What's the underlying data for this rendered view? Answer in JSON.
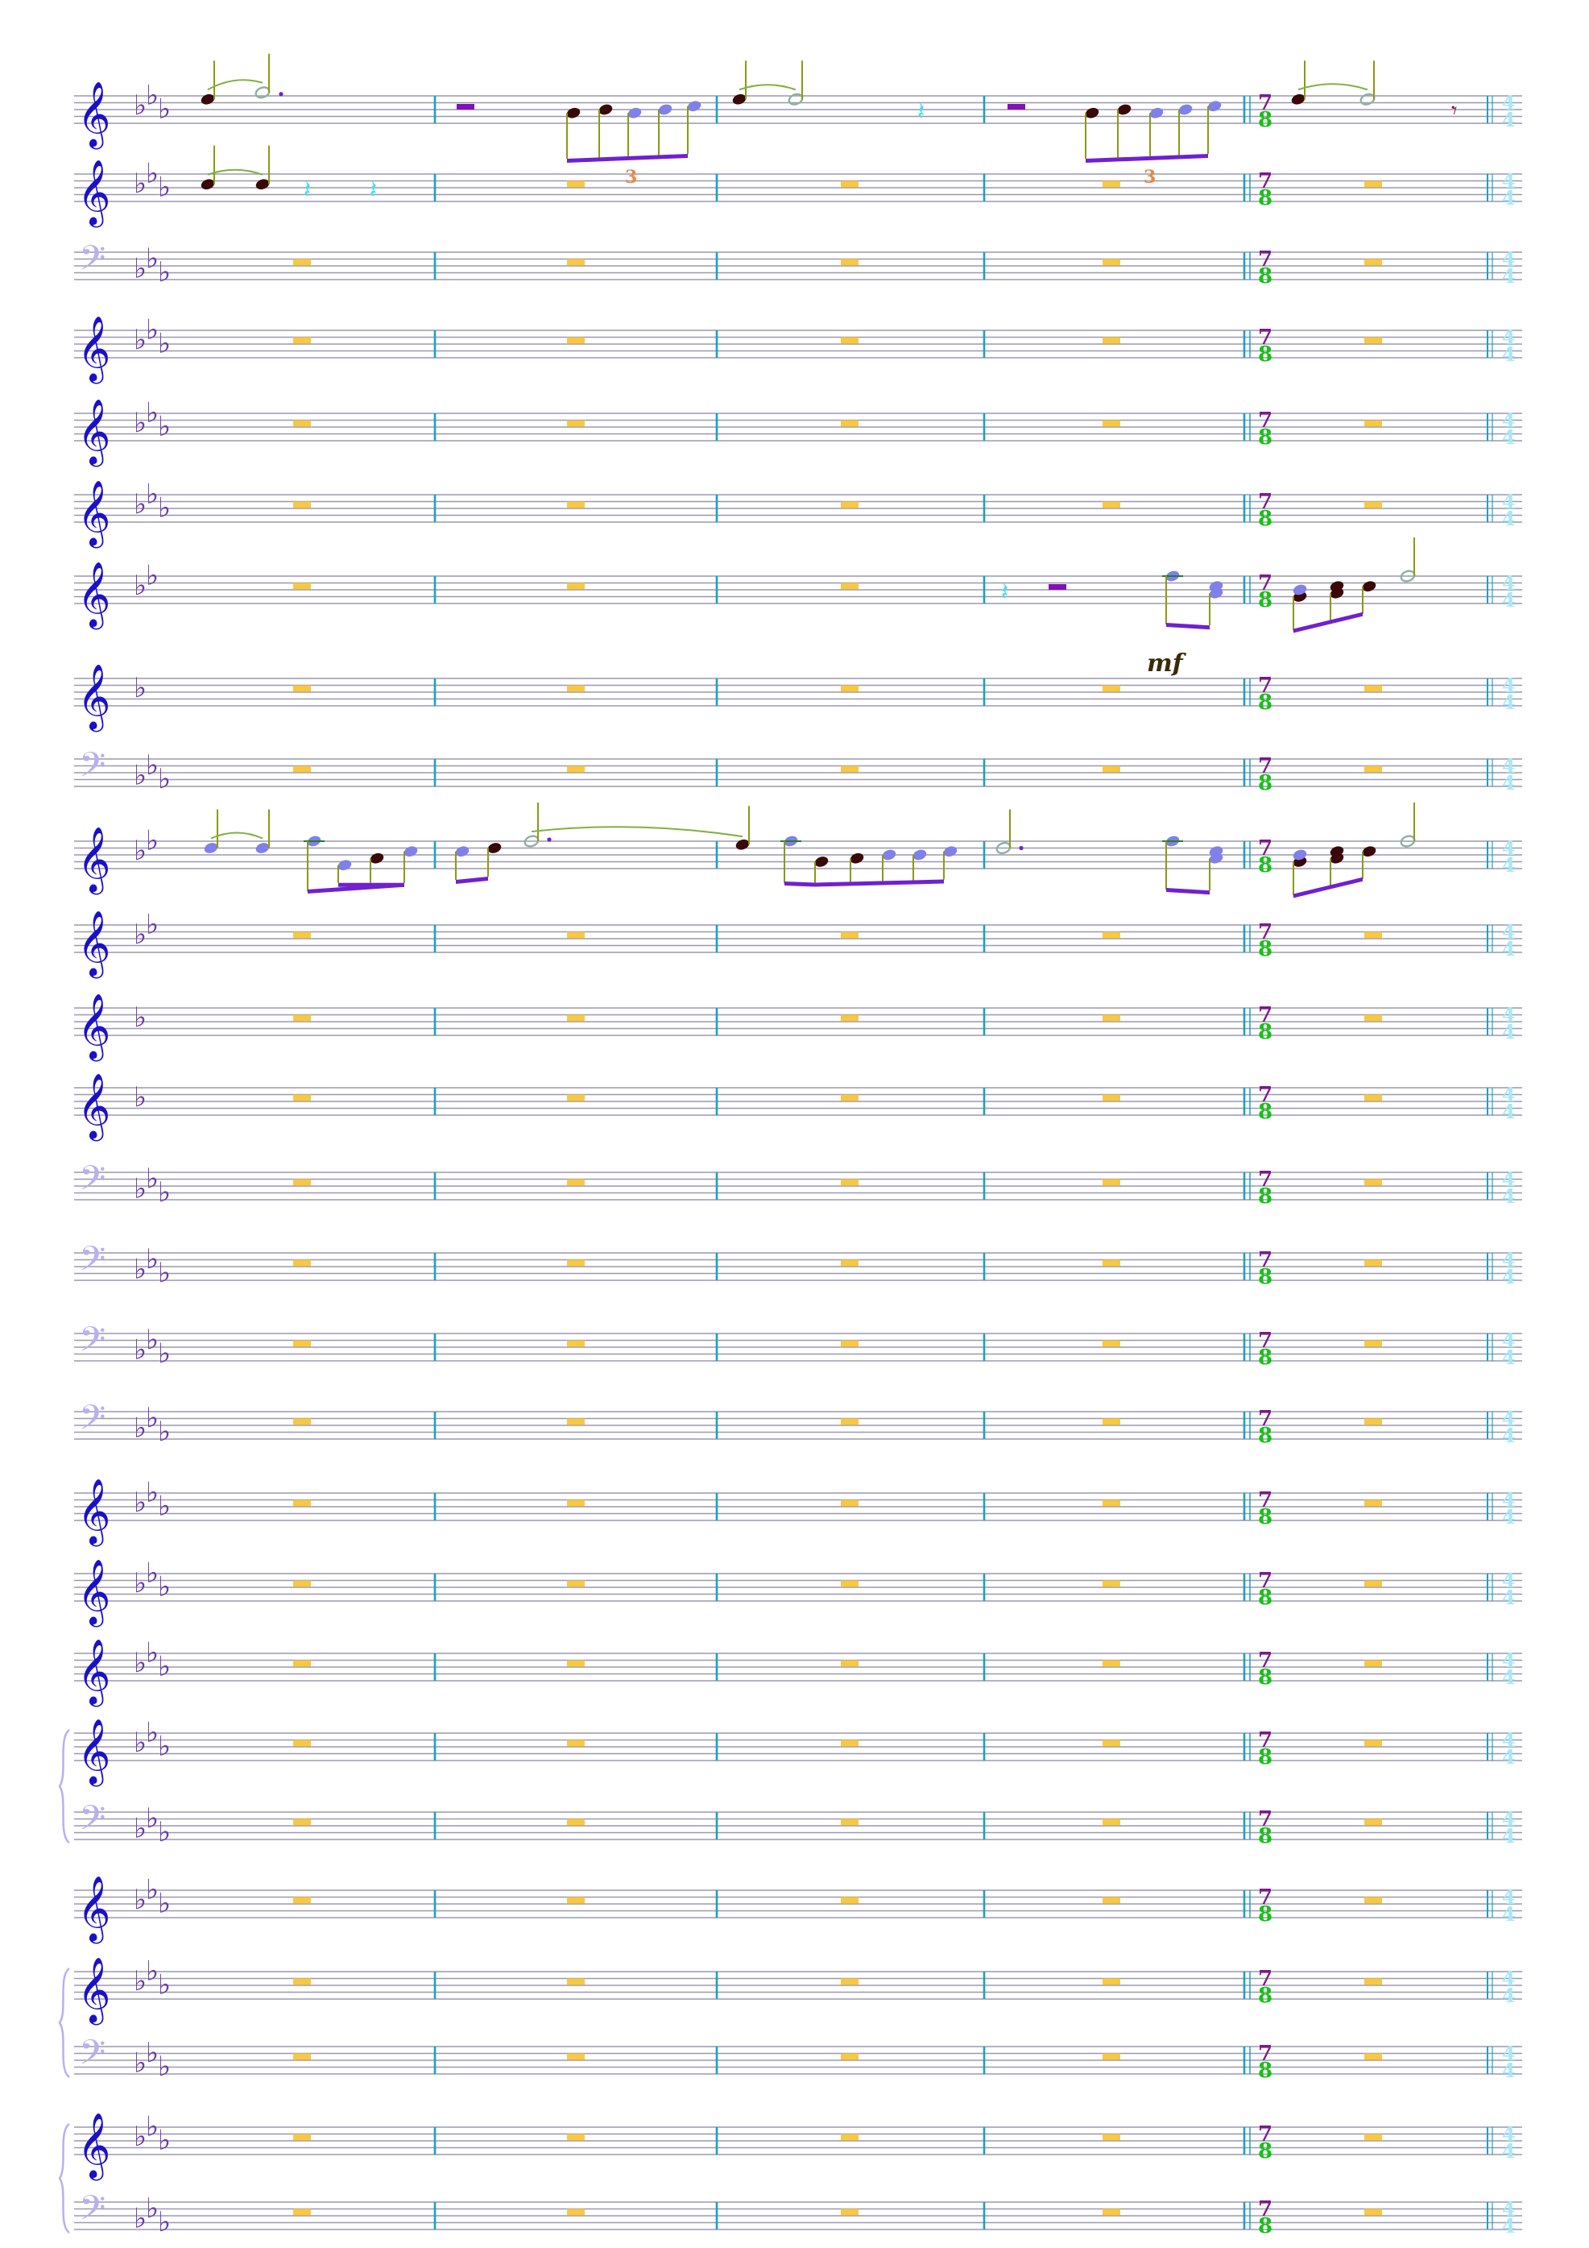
{
  "score": {
    "colors": {
      "staff_line": "#9a98b0",
      "barline": "#1aa0c8",
      "treble_clef": "#1a10c8",
      "bass_clef": "#b8b0f0",
      "key_flat": "#6a3aa8",
      "time_top": "#7a1a8a",
      "time_bottom": "#18c018",
      "time_end": "#a8e8f8",
      "whole_rest": "#f8c840",
      "beam": "#7020d0",
      "stem": "#8a9a10",
      "note_dark": "#3a0808",
      "note_blue": "#8080ea",
      "note_hollow": "#90b0a0",
      "quarter_rest": "#40e0f0",
      "half_rest": "#8010b8",
      "tuplet": "#e88848",
      "dynamic": "#3a2a08",
      "ledger": "#208020",
      "slur": "#80b040",
      "eighth_rest": "#901040"
    },
    "staves": [
      {
        "clef": "treble-clef",
        "flats": 3
      },
      {
        "clef": "treble-clef",
        "flats": 3
      },
      {
        "clef": "bass-clef",
        "flats": 3
      },
      {
        "clef": "treble-clef",
        "flats": 3
      },
      {
        "clef": "treble-clef",
        "flats": 3
      },
      {
        "clef": "treble-clef",
        "flats": 3
      },
      {
        "clef": "treble-clef",
        "flats": 2
      },
      {
        "clef": "treble-clef",
        "flats": 1
      },
      {
        "clef": "bass-clef",
        "flats": 3
      },
      {
        "clef": "treble-clef",
        "flats": 2
      },
      {
        "clef": "treble-clef",
        "flats": 2
      },
      {
        "clef": "treble-clef",
        "flats": 1
      },
      {
        "clef": "treble-clef",
        "flats": 1
      },
      {
        "clef": "bass-clef",
        "flats": 3
      },
      {
        "clef": "bass-clef",
        "flats": 3
      },
      {
        "clef": "bass-clef",
        "flats": 3
      },
      {
        "clef": "bass-clef",
        "flats": 3
      },
      {
        "clef": "treble-clef",
        "flats": 3
      },
      {
        "clef": "treble-clef",
        "flats": 3
      },
      {
        "clef": "treble-clef",
        "flats": 3
      },
      {
        "clef": "treble-clef",
        "flats": 3
      },
      {
        "clef": "bass-clef",
        "flats": 3
      },
      {
        "clef": "treble-clef",
        "flats": 3
      },
      {
        "clef": "treble-clef",
        "flats": 3
      },
      {
        "clef": "bass-clef",
        "flats": 3
      },
      {
        "clef": "treble-clef",
        "flats": 3
      },
      {
        "clef": "bass-clef",
        "flats": 3
      }
    ],
    "brace_groups": [
      [
        20,
        21
      ],
      [
        23,
        24
      ],
      [
        25,
        26
      ]
    ],
    "measure_count": 5,
    "time_change": {
      "measure": 5,
      "top": "7",
      "bottom": "8"
    },
    "end_time_signature": {
      "top": "4",
      "bottom": "4"
    },
    "tuplet_label": "3",
    "dynamic_text": "mf"
  }
}
